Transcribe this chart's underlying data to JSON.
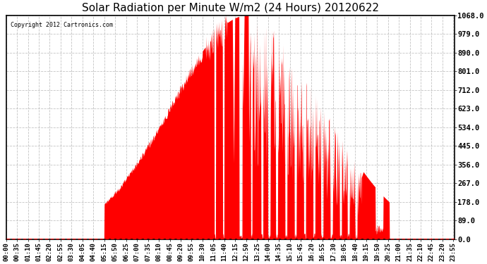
{
  "title": "Solar Radiation per Minute W/m2 (24 Hours) 20120622",
  "copyright_text": "Copyright 2012 Cartronics.com",
  "y_ticks": [
    0.0,
    89.0,
    178.0,
    267.0,
    356.0,
    445.0,
    534.0,
    623.0,
    712.0,
    801.0,
    890.0,
    979.0,
    1068.0
  ],
  "ylim": [
    0.0,
    1068.0
  ],
  "fill_color": "#FF0000",
  "line_color": "#FF0000",
  "dashed_line_color": "#FF0000",
  "bg_color": "#FFFFFF",
  "grid_color": "#AAAAAA",
  "border_color": "#000000",
  "title_fontsize": 11,
  "xlabel_fontsize": 6.5,
  "ylabel_fontsize": 7.5,
  "sunrise_minute": 315,
  "sunset_minute": 1230,
  "peak_value": 1068.0,
  "tick_step": 35
}
